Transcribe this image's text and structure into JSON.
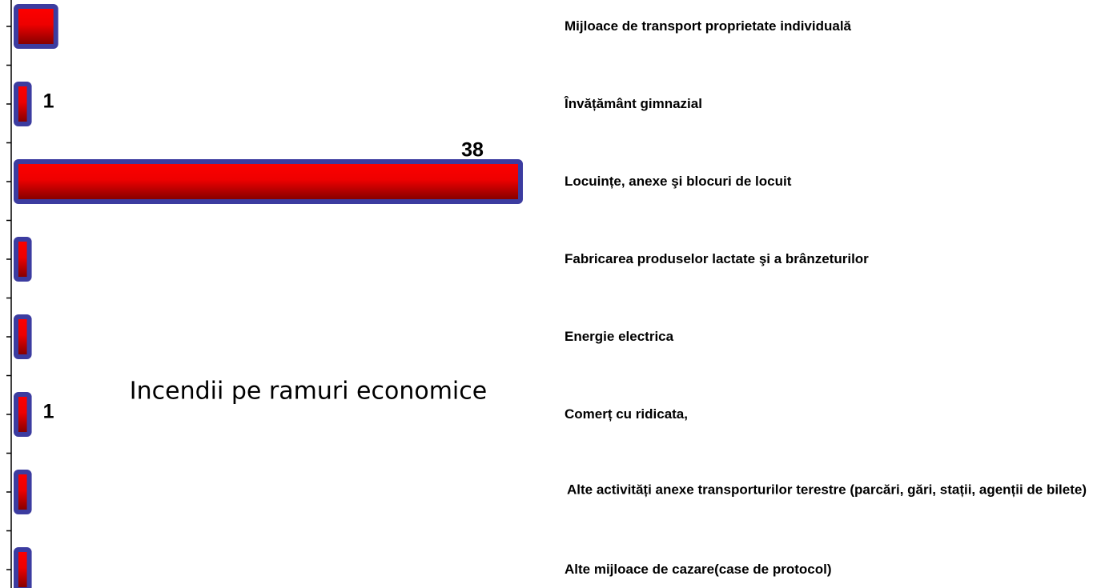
{
  "chart_data": {
    "type": "hbar",
    "title": "Incendii pe ramuri economice",
    "categories": [
      "Mijloace de transport proprietate individuală",
      "Învățământ gimnazial",
      "Locuințe, anexe şi blocuri de locuit",
      "Fabricarea produselor lactate şi a brânzeturilor",
      "Energie electrica",
      "Comerț cu ridicata,",
      "Alte activități anexe transporturilor terestre (parcări, gări, stații, agenții de bilete)",
      "Alte mijloace de cazare(case de protocol)"
    ],
    "values": [
      3,
      1,
      38,
      1,
      1,
      1,
      1,
      1
    ],
    "value_labels": [
      null,
      "1",
      "38",
      null,
      null,
      "1",
      null,
      null
    ],
    "color": "#ff0000",
    "border_color": "#3c3ca0",
    "xlim": [
      0,
      38
    ]
  }
}
